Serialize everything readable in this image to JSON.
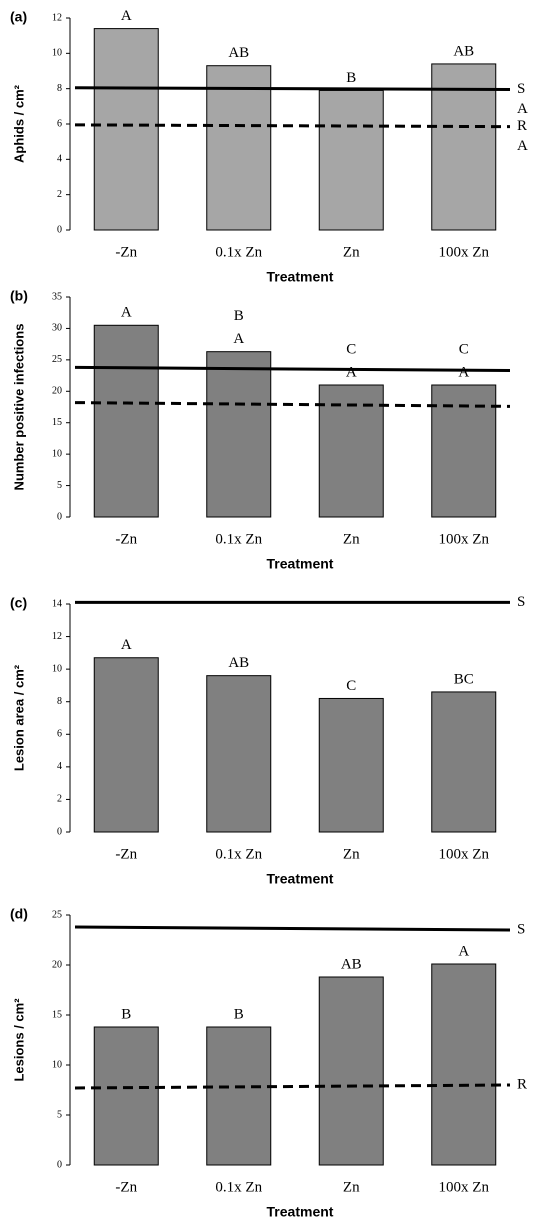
{
  "chart_data": [
    {
      "type": "bar",
      "panel_label": "(a)",
      "ylabel": "Aphids / cm²",
      "xlabel": "Treatment",
      "categories": [
        "-Zn",
        "0.1x Zn",
        "Zn",
        "100x Zn"
      ],
      "values": [
        11.4,
        9.3,
        7.9,
        9.4
      ],
      "color": "#a6a6a6",
      "letters": [
        [
          "A"
        ],
        [
          "AB"
        ],
        [
          "B"
        ],
        [
          "AB"
        ]
      ],
      "ylim": [
        0,
        12
      ],
      "yticks": [
        0,
        2,
        4,
        6,
        8,
        10,
        12
      ],
      "reference_lines": [
        {
          "style": "solid",
          "start": 8.05,
          "end": 7.95,
          "labels": [
            "S",
            "A"
          ]
        },
        {
          "style": "dashed",
          "start": 5.95,
          "end": 5.85,
          "labels": [
            "R",
            "A"
          ]
        }
      ]
    },
    {
      "type": "bar",
      "panel_label": "(b)",
      "ylabel": "Number positive infections",
      "xlabel": "Treatment",
      "categories": [
        "-Zn",
        "0.1x Zn",
        "Zn",
        "100x Zn"
      ],
      "values": [
        30.5,
        26.3,
        21,
        21
      ],
      "color": "#808080",
      "letters": [
        [
          "A"
        ],
        [
          "B",
          "A"
        ],
        [
          "C",
          "A"
        ],
        [
          "C",
          "A"
        ]
      ],
      "ylim": [
        0,
        35
      ],
      "yticks": [
        0,
        5,
        10,
        15,
        20,
        25,
        30,
        35
      ],
      "reference_lines": [
        {
          "style": "solid",
          "start": 23.8,
          "end": 23.3
        },
        {
          "style": "dashed",
          "start": 18.2,
          "end": 17.6
        }
      ]
    },
    {
      "type": "bar",
      "panel_label": "(c)",
      "ylabel": "Lesion area / cm²",
      "xlabel": "Treatment",
      "categories": [
        "-Zn",
        "0.1x Zn",
        "Zn",
        "100x Zn"
      ],
      "values": [
        10.7,
        9.6,
        8.2,
        8.6
      ],
      "color": "#808080",
      "letters": [
        [
          "A"
        ],
        [
          "AB"
        ],
        [
          "C"
        ],
        [
          "BC"
        ]
      ],
      "ylim": [
        0,
        14
      ],
      "yticks": [
        0,
        2,
        4,
        6,
        8,
        10,
        12,
        14
      ],
      "reference_lines": [
        {
          "style": "solid",
          "start": 14.1,
          "end": 14.1,
          "labels": [
            "S"
          ]
        }
      ]
    },
    {
      "type": "bar",
      "panel_label": "(d)",
      "ylabel": "Lesions / cm²",
      "xlabel": "Treatment",
      "categories": [
        "-Zn",
        "0.1x Zn",
        "Zn",
        "100x Zn"
      ],
      "values": [
        13.8,
        13.8,
        18.8,
        20.1
      ],
      "color": "#808080",
      "letters": [
        [
          "B"
        ],
        [
          "B"
        ],
        [
          "AB"
        ],
        [
          "A"
        ]
      ],
      "ylim": [
        0,
        25
      ],
      "yticks": [
        0,
        5,
        10,
        15,
        20,
        25
      ],
      "reference_lines": [
        {
          "style": "solid",
          "start": 23.8,
          "end": 23.5,
          "labels": [
            "S"
          ]
        },
        {
          "style": "dashed",
          "start": 7.7,
          "end": 8.0,
          "labels": [
            "R"
          ]
        }
      ]
    }
  ]
}
